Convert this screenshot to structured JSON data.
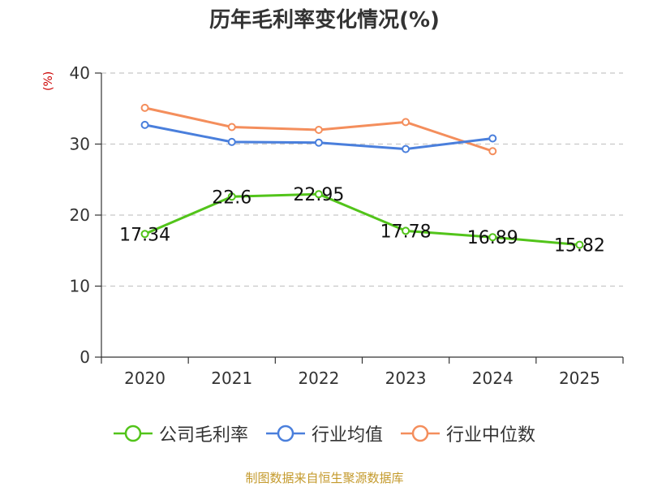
{
  "chart_data": {
    "type": "line",
    "title": "历年毛利率变化情况(%)",
    "ylabel": "(%)",
    "xlabel": "",
    "categories": [
      "2020",
      "2021",
      "2022",
      "2023",
      "2024",
      "2025"
    ],
    "ylim": [
      0,
      40
    ],
    "yticks": [
      0,
      10,
      20,
      30,
      40
    ],
    "grid": true,
    "legend_position": "bottom",
    "series": [
      {
        "name": "公司毛利率",
        "color": "#52c41a",
        "values": [
          17.34,
          22.6,
          22.95,
          17.78,
          16.89,
          15.82
        ],
        "labels": [
          "17.34",
          "22.6",
          "22.95",
          "17.78",
          "16.89",
          "15.82"
        ]
      },
      {
        "name": "行业均值",
        "color": "#4a7fdc",
        "values": [
          32.7,
          30.3,
          30.2,
          29.3,
          30.8,
          null
        ]
      },
      {
        "name": "行业中位数",
        "color": "#f48e5c",
        "values": [
          35.1,
          32.4,
          32.0,
          33.1,
          29.0,
          null
        ]
      }
    ]
  },
  "source": "制图数据来自恒生聚源数据库"
}
